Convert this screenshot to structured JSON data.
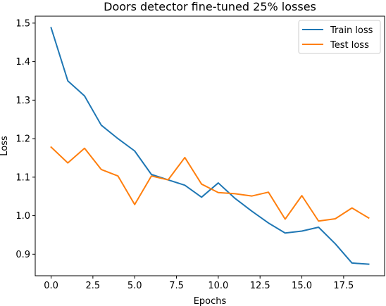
{
  "chart_data": {
    "type": "line",
    "title": "Doors detector fine-tuned 25% losses",
    "xlabel": "Epochs",
    "ylabel": "Loss",
    "xlim": [
      -0.95,
      19.95
    ],
    "ylim": [
      0.844,
      1.518
    ],
    "xticks": [
      0.0,
      2.5,
      5.0,
      7.5,
      10.0,
      12.5,
      15.0,
      17.5
    ],
    "xtick_labels": [
      "0.0",
      "2.5",
      "5.0",
      "7.5",
      "10.0",
      "12.5",
      "15.0",
      "17.5"
    ],
    "yticks": [
      0.9,
      1.0,
      1.1,
      1.2,
      1.3,
      1.4,
      1.5
    ],
    "ytick_labels": [
      "0.9",
      "1.0",
      "1.1",
      "1.2",
      "1.3",
      "1.4",
      "1.5"
    ],
    "grid": false,
    "legend_position": "upper-right",
    "x": [
      0,
      1,
      2,
      3,
      4,
      5,
      6,
      7,
      8,
      9,
      10,
      11,
      12,
      13,
      14,
      15,
      16,
      17,
      18,
      19
    ],
    "series": [
      {
        "name": "Train loss",
        "color": "#1f77b4",
        "values": [
          1.488,
          1.35,
          1.311,
          1.235,
          1.2,
          1.168,
          1.107,
          1.093,
          1.079,
          1.048,
          1.085,
          1.045,
          1.012,
          0.981,
          0.955,
          0.96,
          0.97,
          0.927,
          0.877,
          0.874
        ]
      },
      {
        "name": "Test loss",
        "color": "#ff7f0e",
        "values": [
          1.178,
          1.137,
          1.175,
          1.12,
          1.103,
          1.029,
          1.103,
          1.093,
          1.151,
          1.082,
          1.06,
          1.057,
          1.051,
          1.061,
          0.991,
          1.052,
          0.986,
          0.992,
          1.02,
          0.994
        ]
      }
    ]
  }
}
